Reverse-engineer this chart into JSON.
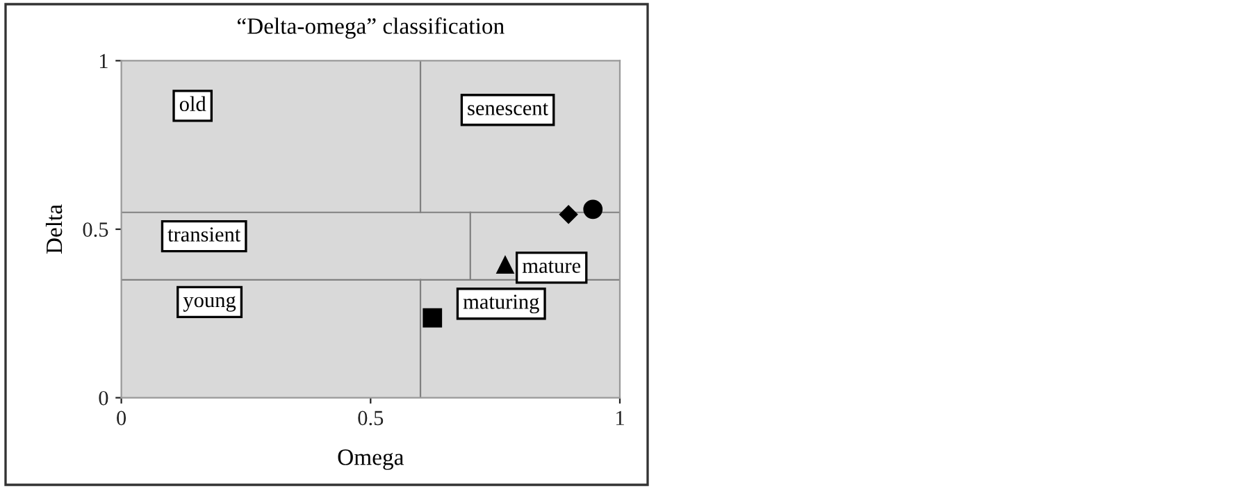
{
  "chart_data": {
    "type": "scatter",
    "title": "“Delta-omega” classification",
    "xlabel": "Omega",
    "ylabel": "Delta",
    "xlim": [
      0,
      1
    ],
    "ylim": [
      0,
      1
    ],
    "xticks": [
      0,
      0.5,
      1
    ],
    "yticks": [
      0,
      0.5,
      1
    ],
    "grid": false,
    "legend": false,
    "ref_lines": [
      {
        "axis": "y",
        "value": 0.55,
        "color": "#808080"
      },
      {
        "axis": "y",
        "value": 0.35,
        "color": "#808080"
      }
    ],
    "series": [
      {
        "type": "line",
        "color": "#808080",
        "marker": "none",
        "x": [
          0.6,
          0.6
        ],
        "values": [
          0.55,
          1
        ]
      },
      {
        "type": "line",
        "color": "#808080",
        "marker": "none",
        "x": [
          0.6,
          0.6
        ],
        "values": [
          0,
          0.35
        ]
      },
      {
        "type": "line",
        "color": "#808080",
        "marker": "none",
        "x": [
          0.7,
          0.7
        ],
        "values": [
          0.35,
          0.55
        ]
      },
      {
        "color": "#000000",
        "marker": "circle",
        "x": [
          0.946
        ],
        "values": [
          0.559
        ]
      },
      {
        "color": "#000000",
        "marker": "diamond",
        "x": [
          0.897
        ],
        "values": [
          0.544
        ]
      },
      {
        "color": "#000000",
        "marker": "triangle",
        "x": [
          0.77
        ],
        "values": [
          0.394
        ]
      },
      {
        "color": "#000000",
        "marker": "square",
        "x": [
          0.624
        ],
        "values": [
          0.237
        ]
      }
    ],
    "annotations": [
      "old",
      "senescent",
      "transient",
      "mature",
      "young",
      "maturing"
    ]
  }
}
